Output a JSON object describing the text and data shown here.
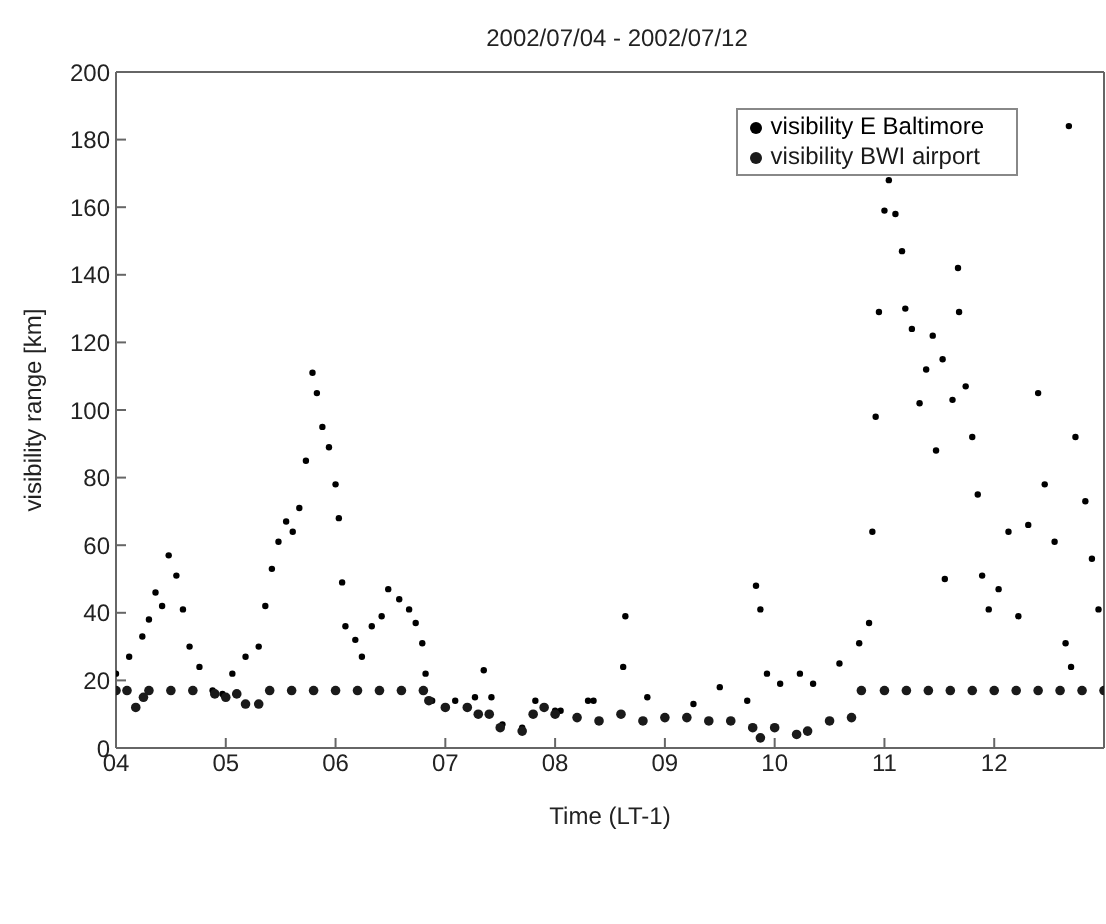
{
  "chart_data": {
    "type": "scatter",
    "title": "2002/07/04 - 2002/07/12",
    "xlabel": "Time (LT-1)",
    "ylabel": "visibility range [km]",
    "xlim": [
      4,
      13
    ],
    "xticks": [
      {
        "value": 4,
        "label": "04"
      },
      {
        "value": 5,
        "label": "05"
      },
      {
        "value": 6,
        "label": "06"
      },
      {
        "value": 7,
        "label": "07"
      },
      {
        "value": 8,
        "label": "08"
      },
      {
        "value": 9,
        "label": "09"
      },
      {
        "value": 10,
        "label": "10"
      },
      {
        "value": 11,
        "label": "11"
      },
      {
        "value": 12,
        "label": "12"
      }
    ],
    "ylim": [
      0,
      200
    ],
    "yticks": [
      0,
      20,
      40,
      60,
      80,
      100,
      120,
      140,
      160,
      180,
      200
    ],
    "legend": "top right",
    "marker": "circle",
    "series": [
      {
        "name": "visibility E Baltimore",
        "color": "#000000",
        "x": [
          4.0,
          4.12,
          4.24,
          4.3,
          4.36,
          4.42,
          4.48,
          4.55,
          4.61,
          4.67,
          4.76,
          4.88,
          4.97,
          5.06,
          5.18,
          5.3,
          5.36,
          5.42,
          5.48,
          5.55,
          5.61,
          5.67,
          5.73,
          5.79,
          5.83,
          5.88,
          5.94,
          6.0,
          6.03,
          6.06,
          6.09,
          6.18,
          6.24,
          6.33,
          6.42,
          6.48,
          6.58,
          6.67,
          6.73,
          6.79,
          6.82,
          6.88,
          7.09,
          7.27,
          7.35,
          7.42,
          7.52,
          7.7,
          7.82,
          8.0,
          8.05,
          8.3,
          8.35,
          8.62,
          8.64,
          8.84,
          9.26,
          9.5,
          9.75,
          9.83,
          9.87,
          9.93,
          10.05,
          10.23,
          10.35,
          10.59,
          10.77,
          10.86,
          10.89,
          10.92,
          10.95,
          11.0,
          11.04,
          11.1,
          11.16,
          11.19,
          11.25,
          11.32,
          11.38,
          11.44,
          11.47,
          11.53,
          11.55,
          11.62,
          11.67,
          11.68,
          11.74,
          11.8,
          11.85,
          11.89,
          11.95,
          12.04,
          12.13,
          12.22,
          12.31,
          12.4,
          12.46,
          12.55,
          12.65,
          12.68,
          12.7,
          12.74,
          12.83,
          12.89,
          12.95
        ],
        "values": [
          22,
          27,
          33,
          38,
          46,
          42,
          57,
          51,
          41,
          30,
          24,
          17,
          16,
          22,
          27,
          30,
          42,
          53,
          61,
          67,
          64,
          71,
          85,
          111,
          105,
          95,
          89,
          78,
          68,
          49,
          36,
          32,
          27,
          36,
          39,
          47,
          44,
          41,
          37,
          31,
          22,
          14,
          14,
          15,
          23,
          15,
          7,
          6,
          14,
          11,
          11,
          14,
          14,
          24,
          39,
          15,
          13,
          18,
          14,
          48,
          41,
          22,
          19,
          22,
          19,
          25,
          31,
          37,
          64,
          98,
          129,
          159,
          168,
          158,
          147,
          130,
          124,
          102,
          112,
          122,
          88,
          115,
          50,
          103,
          142,
          129,
          107,
          92,
          75,
          51,
          41,
          47,
          64,
          39,
          66,
          105,
          78,
          61,
          31,
          184,
          24,
          92,
          73,
          56,
          41
        ]
      },
      {
        "name": "visibility BWI airport",
        "color": "#1a1a1a",
        "x": [
          4.0,
          4.1,
          4.18,
          4.25,
          4.3,
          4.5,
          4.7,
          4.9,
          5.0,
          5.1,
          5.18,
          5.3,
          5.4,
          5.6,
          5.8,
          6.0,
          6.2,
          6.4,
          6.6,
          6.8,
          6.85,
          7.0,
          7.2,
          7.3,
          7.4,
          7.5,
          7.7,
          7.8,
          7.9,
          8.0,
          8.2,
          8.4,
          8.6,
          8.8,
          9.0,
          9.2,
          9.4,
          9.6,
          9.8,
          9.87,
          10.0,
          10.2,
          10.3,
          10.5,
          10.7,
          10.79,
          11.0,
          11.2,
          11.4,
          11.6,
          11.8,
          12.0,
          12.2,
          12.4,
          12.6,
          12.8,
          13.0
        ],
        "values": [
          17,
          17,
          12,
          15,
          17,
          17,
          17,
          16,
          15,
          16,
          13,
          13,
          17,
          17,
          17,
          17,
          17,
          17,
          17,
          17,
          14,
          12,
          12,
          10,
          10,
          6,
          5,
          10,
          12,
          10,
          9,
          8,
          10,
          8,
          9,
          9,
          8,
          8,
          6,
          3,
          6,
          4,
          5,
          8,
          9,
          17,
          17,
          17,
          17,
          17,
          17,
          17,
          17,
          17,
          17,
          17,
          17
        ]
      }
    ]
  }
}
